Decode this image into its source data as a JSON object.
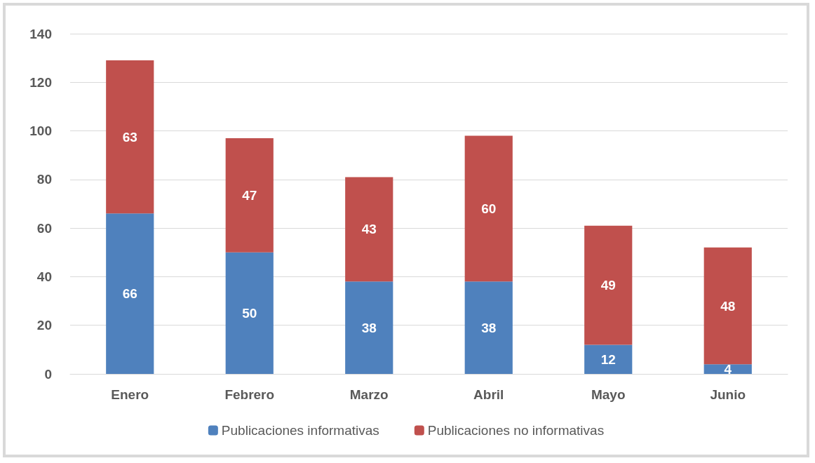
{
  "chart_data": {
    "type": "bar",
    "stacked": true,
    "categories": [
      "Enero",
      "Febrero",
      "Marzo",
      "Abril",
      "Mayo",
      "Junio"
    ],
    "series": [
      {
        "name": "Publicaciones informativas",
        "color": "#4f81bd",
        "values": [
          66,
          50,
          38,
          38,
          12,
          4
        ]
      },
      {
        "name": "Publicaciones no informativas",
        "color": "#c0504d",
        "values": [
          63,
          47,
          43,
          60,
          49,
          48
        ]
      }
    ],
    "ylim": [
      0,
      140
    ],
    "yticks": [
      0,
      20,
      40,
      60,
      80,
      100,
      120,
      140
    ],
    "grid": "y",
    "legend": "bottom",
    "data_labels": true
  }
}
